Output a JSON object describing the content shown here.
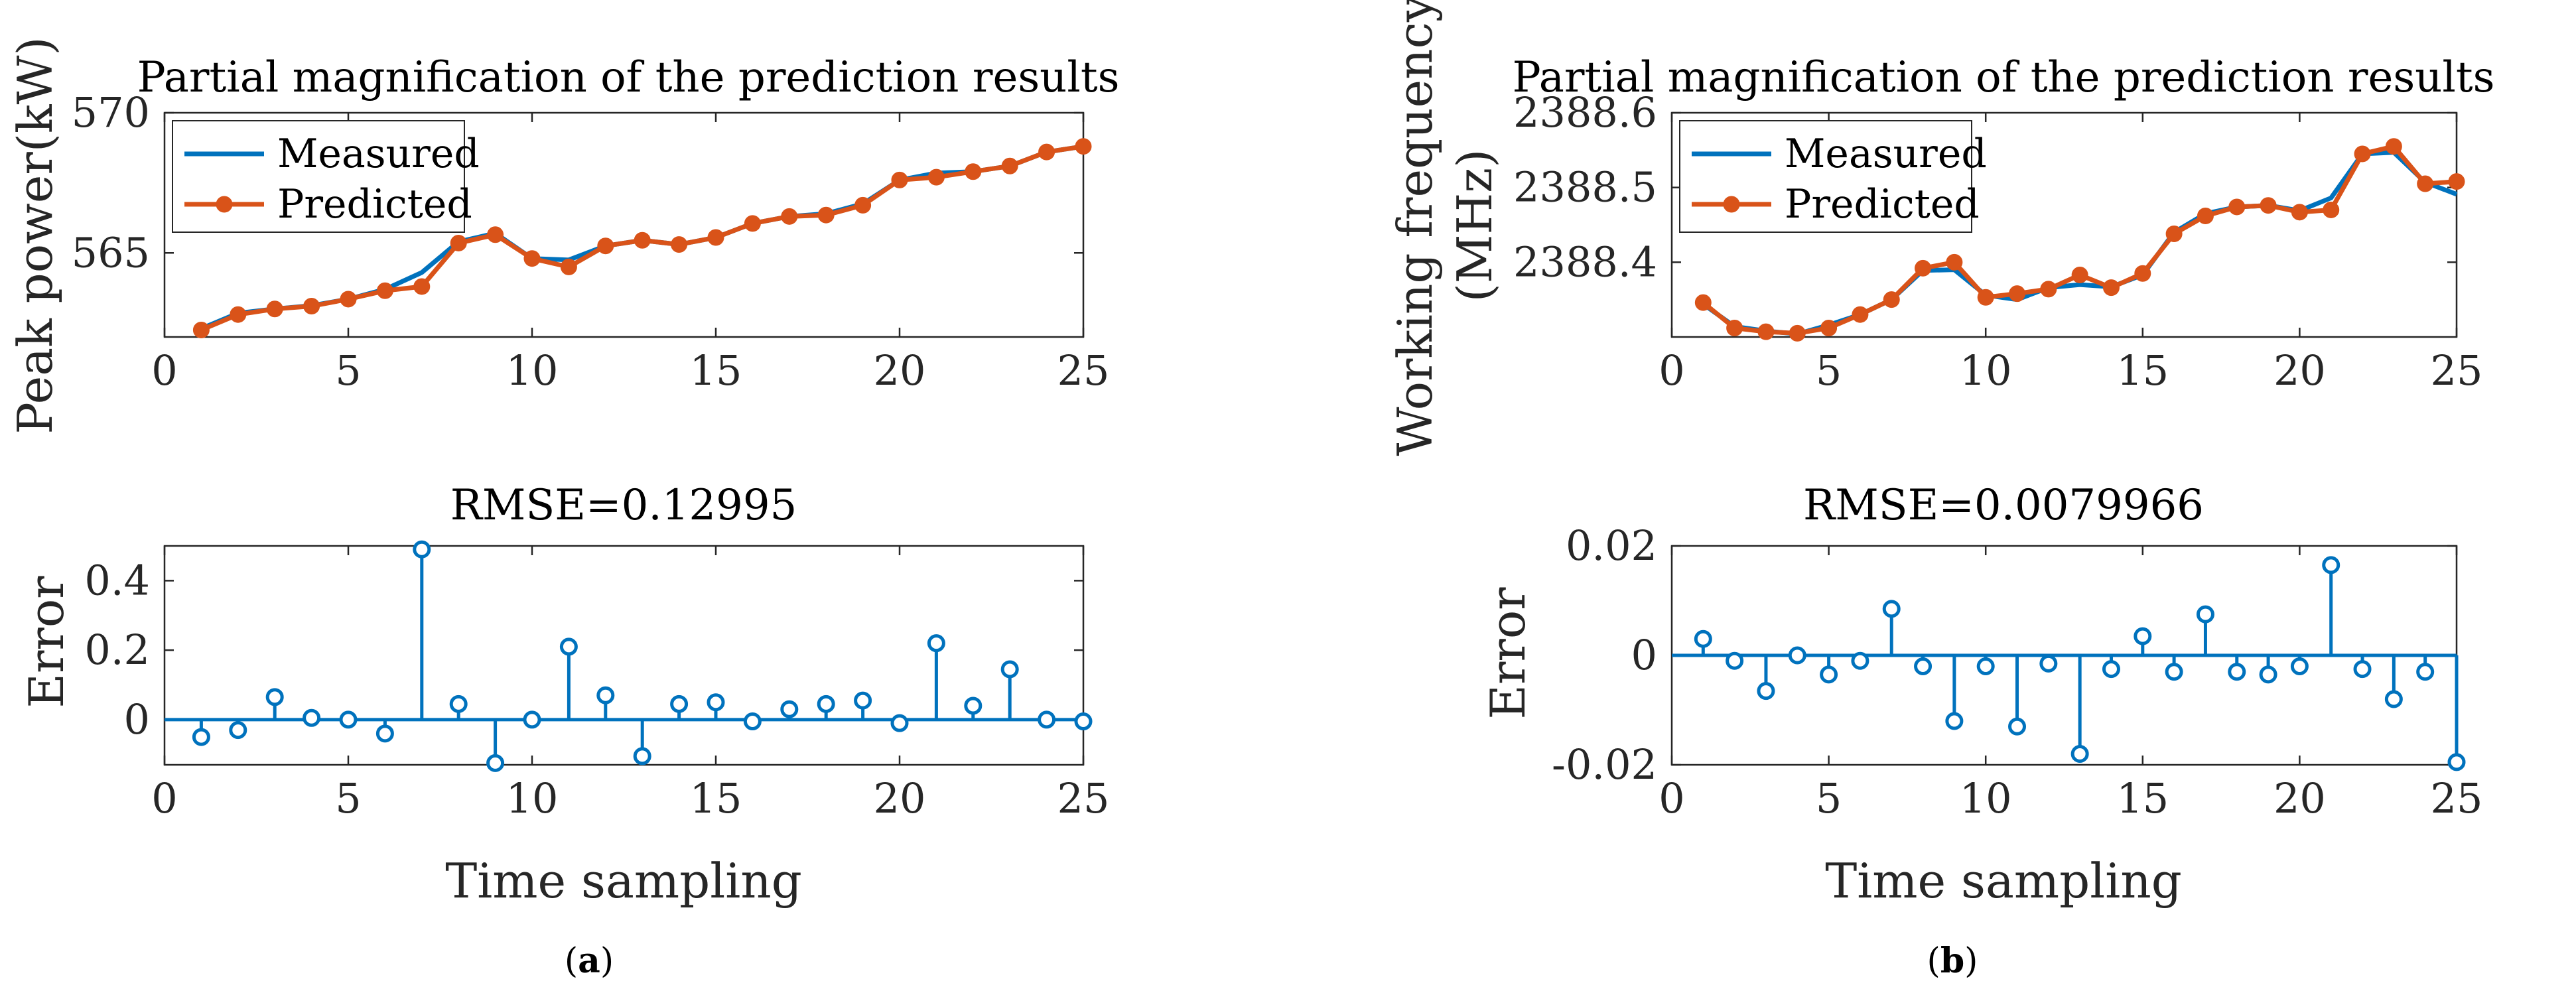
{
  "colors": {
    "measured": "#0072BD",
    "predicted": "#D95319",
    "axis": "#262626"
  },
  "panels": [
    {
      "caption_letter": "a",
      "top": {
        "title": "Partial magnification of the prediction results",
        "ylabel": "Peak power(kW)",
        "xlim": [
          0,
          25
        ],
        "ylim": [
          562,
          570
        ],
        "xticks": [
          0,
          5,
          10,
          15,
          20,
          25
        ],
        "yticks": [
          565,
          570
        ],
        "ytick_labels": [
          "565",
          "570"
        ],
        "legend": [
          "Measured",
          "Predicted"
        ],
        "series": [
          {
            "name": "Measured",
            "type": "line",
            "x": [
              1,
              2,
              3,
              4,
              5,
              6,
              7,
              8,
              9,
              10,
              11,
              12,
              13,
              14,
              15,
              16,
              17,
              18,
              19,
              20,
              21,
              22,
              23,
              24,
              25
            ],
            "values": [
              562.3,
              562.85,
              563.0,
              563.12,
              563.35,
              563.7,
              564.3,
              565.4,
              565.7,
              564.8,
              564.75,
              565.25,
              565.45,
              565.3,
              565.55,
              566.05,
              566.3,
              566.4,
              566.75,
              567.6,
              567.85,
              567.9,
              568.1,
              568.6,
              568.8
            ]
          },
          {
            "name": "Predicted",
            "type": "line-marker",
            "x": [
              1,
              2,
              3,
              4,
              5,
              6,
              7,
              8,
              9,
              10,
              11,
              12,
              13,
              14,
              15,
              16,
              17,
              18,
              19,
              20,
              21,
              22,
              23,
              24,
              25
            ],
            "values": [
              562.25,
              562.8,
              563.0,
              563.1,
              563.35,
              563.65,
              563.8,
              565.35,
              565.65,
              564.8,
              564.5,
              565.25,
              565.45,
              565.3,
              565.55,
              566.05,
              566.3,
              566.35,
              566.7,
              567.6,
              567.7,
              567.9,
              568.1,
              568.6,
              568.8
            ]
          }
        ]
      },
      "bottom": {
        "title": "RMSE=0.12995",
        "ylabel": "Error",
        "xlabel": "Time sampling",
        "xlim": [
          0,
          25
        ],
        "ylim": [
          -0.13,
          0.5
        ],
        "xticks": [
          0,
          5,
          10,
          15,
          20,
          25
        ],
        "yticks": [
          0,
          0.2,
          0.4
        ],
        "ytick_labels": [
          "0",
          "0.2",
          "0.4"
        ],
        "series": [
          {
            "name": "Error",
            "type": "stem",
            "x": [
              1,
              2,
              3,
              4,
              5,
              6,
              7,
              8,
              9,
              10,
              11,
              12,
              13,
              14,
              15,
              16,
              17,
              18,
              19,
              20,
              21,
              22,
              23,
              24,
              25
            ],
            "values": [
              -0.05,
              -0.03,
              0.065,
              0.005,
              0.0,
              -0.04,
              0.49,
              0.045,
              -0.125,
              0.0,
              0.21,
              0.07,
              -0.105,
              0.045,
              0.05,
              -0.005,
              0.03,
              0.045,
              0.055,
              -0.01,
              0.22,
              0.04,
              0.145,
              0.0,
              -0.005
            ]
          }
        ]
      }
    },
    {
      "caption_letter": "b",
      "top": {
        "title": "Partial magnification of the prediction results",
        "ylabel_lines": [
          "Working frequency",
          "(MHz)"
        ],
        "xlim": [
          0,
          25
        ],
        "ylim": [
          2388.3,
          2388.6
        ],
        "xticks": [
          0,
          5,
          10,
          15,
          20,
          25
        ],
        "yticks": [
          2388.4,
          2388.5,
          2388.6
        ],
        "ytick_labels": [
          "2388.4",
          "2388.5",
          "2388.6"
        ],
        "legend": [
          "Measured",
          "Predicted"
        ],
        "series": [
          {
            "name": "Measured",
            "type": "line",
            "x": [
              1,
              2,
              3,
              4,
              5,
              6,
              7,
              8,
              9,
              10,
              11,
              12,
              13,
              14,
              15,
              16,
              17,
              18,
              19,
              20,
              21,
              22,
              23,
              24,
              25
            ],
            "values": [
              2388.344,
              2388.314,
              2388.308,
              2388.304,
              2388.316,
              2388.33,
              2388.35,
              2388.389,
              2388.39,
              2388.356,
              2388.35,
              2388.366,
              2388.37,
              2388.367,
              2388.383,
              2388.44,
              2388.465,
              2388.474,
              2388.476,
              2388.469,
              2388.486,
              2388.545,
              2388.547,
              2388.507,
              2388.491
            ]
          },
          {
            "name": "Predicted",
            "type": "line-marker",
            "x": [
              1,
              2,
              3,
              4,
              5,
              6,
              7,
              8,
              9,
              10,
              11,
              12,
              13,
              14,
              15,
              16,
              17,
              18,
              19,
              20,
              21,
              22,
              23,
              24,
              25
            ],
            "values": [
              2388.346,
              2388.312,
              2388.307,
              2388.305,
              2388.312,
              2388.33,
              2388.35,
              2388.392,
              2388.4,
              2388.353,
              2388.358,
              2388.364,
              2388.383,
              2388.366,
              2388.385,
              2388.438,
              2388.462,
              2388.474,
              2388.476,
              2388.467,
              2388.47,
              2388.545,
              2388.555,
              2388.505,
              2388.508
            ]
          }
        ]
      },
      "bottom": {
        "title": "RMSE=0.0079966",
        "ylabel": "Error",
        "xlabel": "Time sampling",
        "xlim": [
          0,
          25
        ],
        "ylim": [
          -0.02,
          0.02
        ],
        "xticks": [
          0,
          5,
          10,
          15,
          20,
          25
        ],
        "yticks": [
          -0.02,
          0,
          0.02
        ],
        "ytick_labels": [
          "-0.02",
          "0",
          "0.02"
        ],
        "series": [
          {
            "name": "Error",
            "type": "stem",
            "x": [
              1,
              2,
              3,
              4,
              5,
              6,
              7,
              8,
              9,
              10,
              11,
              12,
              13,
              14,
              15,
              16,
              17,
              18,
              19,
              20,
              21,
              22,
              23,
              24,
              25
            ],
            "values": [
              0.003,
              -0.001,
              -0.0065,
              0.0,
              -0.0035,
              -0.001,
              0.0085,
              -0.002,
              -0.012,
              -0.002,
              -0.013,
              -0.0015,
              -0.018,
              -0.0025,
              0.0035,
              -0.003,
              0.0075,
              -0.003,
              -0.0035,
              -0.002,
              0.0165,
              -0.0025,
              -0.008,
              -0.003,
              -0.0195
            ]
          }
        ]
      }
    }
  ]
}
